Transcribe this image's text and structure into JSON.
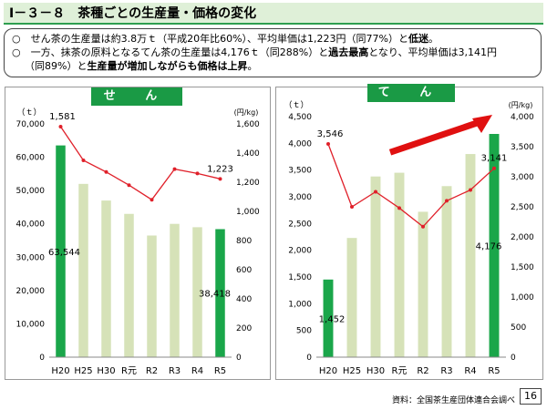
{
  "title": "Ⅰ－３－８　茶種ごとの生産量・価格の変化",
  "summary": {
    "line1_pre": "○　せん茶の生産量は約3.8万ｔ（平成20年比60%）、平均単価は1,223円（同77%）と",
    "line1_bold": "低迷",
    "line1_post": "。",
    "line2_pre": "○　一方、抹茶の原料となるてん茶の生産量は4,176ｔ（同288%）と",
    "line2_bold": "過去最高",
    "line2_post": "となり、平均単価は3,141円",
    "line3_pre": "（同89%）と",
    "line3_bold": "生産量が増加しながらも価格は上昇",
    "line3_post": "。"
  },
  "colors": {
    "bar_normal": "#d6e2b8",
    "bar_highlight": "#1aa64a",
    "line": "#e0202a",
    "arrow": "#e01010",
    "label_bg": "#1a9a45"
  },
  "chart_data": [
    {
      "type": "bar",
      "label": "せ ん 茶",
      "categories": [
        "H20",
        "H25",
        "H30",
        "R元",
        "R2",
        "R3",
        "R4",
        "R5"
      ],
      "highlight": [
        0,
        7
      ],
      "left_unit": "（ｔ）",
      "right_unit": "(円/kg)",
      "ylim": [
        0,
        70000
      ],
      "left_ticks": [
        "0",
        "10,000",
        "20,000",
        "30,000",
        "40,000",
        "50,000",
        "60,000",
        "70,000"
      ],
      "y2lim": [
        0,
        1600
      ],
      "right_ticks": [
        "0",
        "200",
        "400",
        "600",
        "800",
        "1,000",
        "1,200",
        "1,400",
        "1,600"
      ],
      "series": [
        {
          "name": "生産量",
          "kind": "bar",
          "values": [
            63544,
            52000,
            47000,
            43000,
            36500,
            40000,
            39000,
            38418
          ]
        },
        {
          "name": "平均単価",
          "kind": "line",
          "values": [
            1581,
            1350,
            1270,
            1180,
            1080,
            1290,
            1260,
            1223
          ]
        }
      ],
      "data_labels": {
        "bar_first": "63,544",
        "bar_last": "38,418",
        "line_first": "1,581",
        "line_last": "1,223"
      }
    },
    {
      "type": "bar",
      "label": "て ん 茶",
      "categories": [
        "H20",
        "H25",
        "H30",
        "R元",
        "R2",
        "R3",
        "R4",
        "R5"
      ],
      "highlight": [
        0,
        7
      ],
      "left_unit": "（ｔ）",
      "right_unit": "(円/kg)",
      "ylim": [
        0,
        4500
      ],
      "left_ticks": [
        "0",
        "500",
        "1,000",
        "1,500",
        "2,000",
        "2,500",
        "3,000",
        "3,500",
        "4,000",
        "4,500"
      ],
      "y2lim": [
        0,
        4000
      ],
      "right_ticks": [
        "0",
        "500",
        "1,000",
        "1,500",
        "2,000",
        "2,500",
        "3,000",
        "3,500",
        "4,000"
      ],
      "series": [
        {
          "name": "生産量",
          "kind": "bar",
          "values": [
            1452,
            2230,
            3380,
            3450,
            2720,
            3200,
            3800,
            4176
          ]
        },
        {
          "name": "平均単価",
          "kind": "line",
          "values": [
            3546,
            2500,
            2750,
            2480,
            2170,
            2600,
            2780,
            3141
          ]
        }
      ],
      "data_labels": {
        "bar_first": "1,452",
        "bar_last": "4,176",
        "line_first": "3,546",
        "line_last": "3,141"
      }
    }
  ],
  "source": "資料：全国茶生産団体連合会調べ",
  "page_number": "16"
}
